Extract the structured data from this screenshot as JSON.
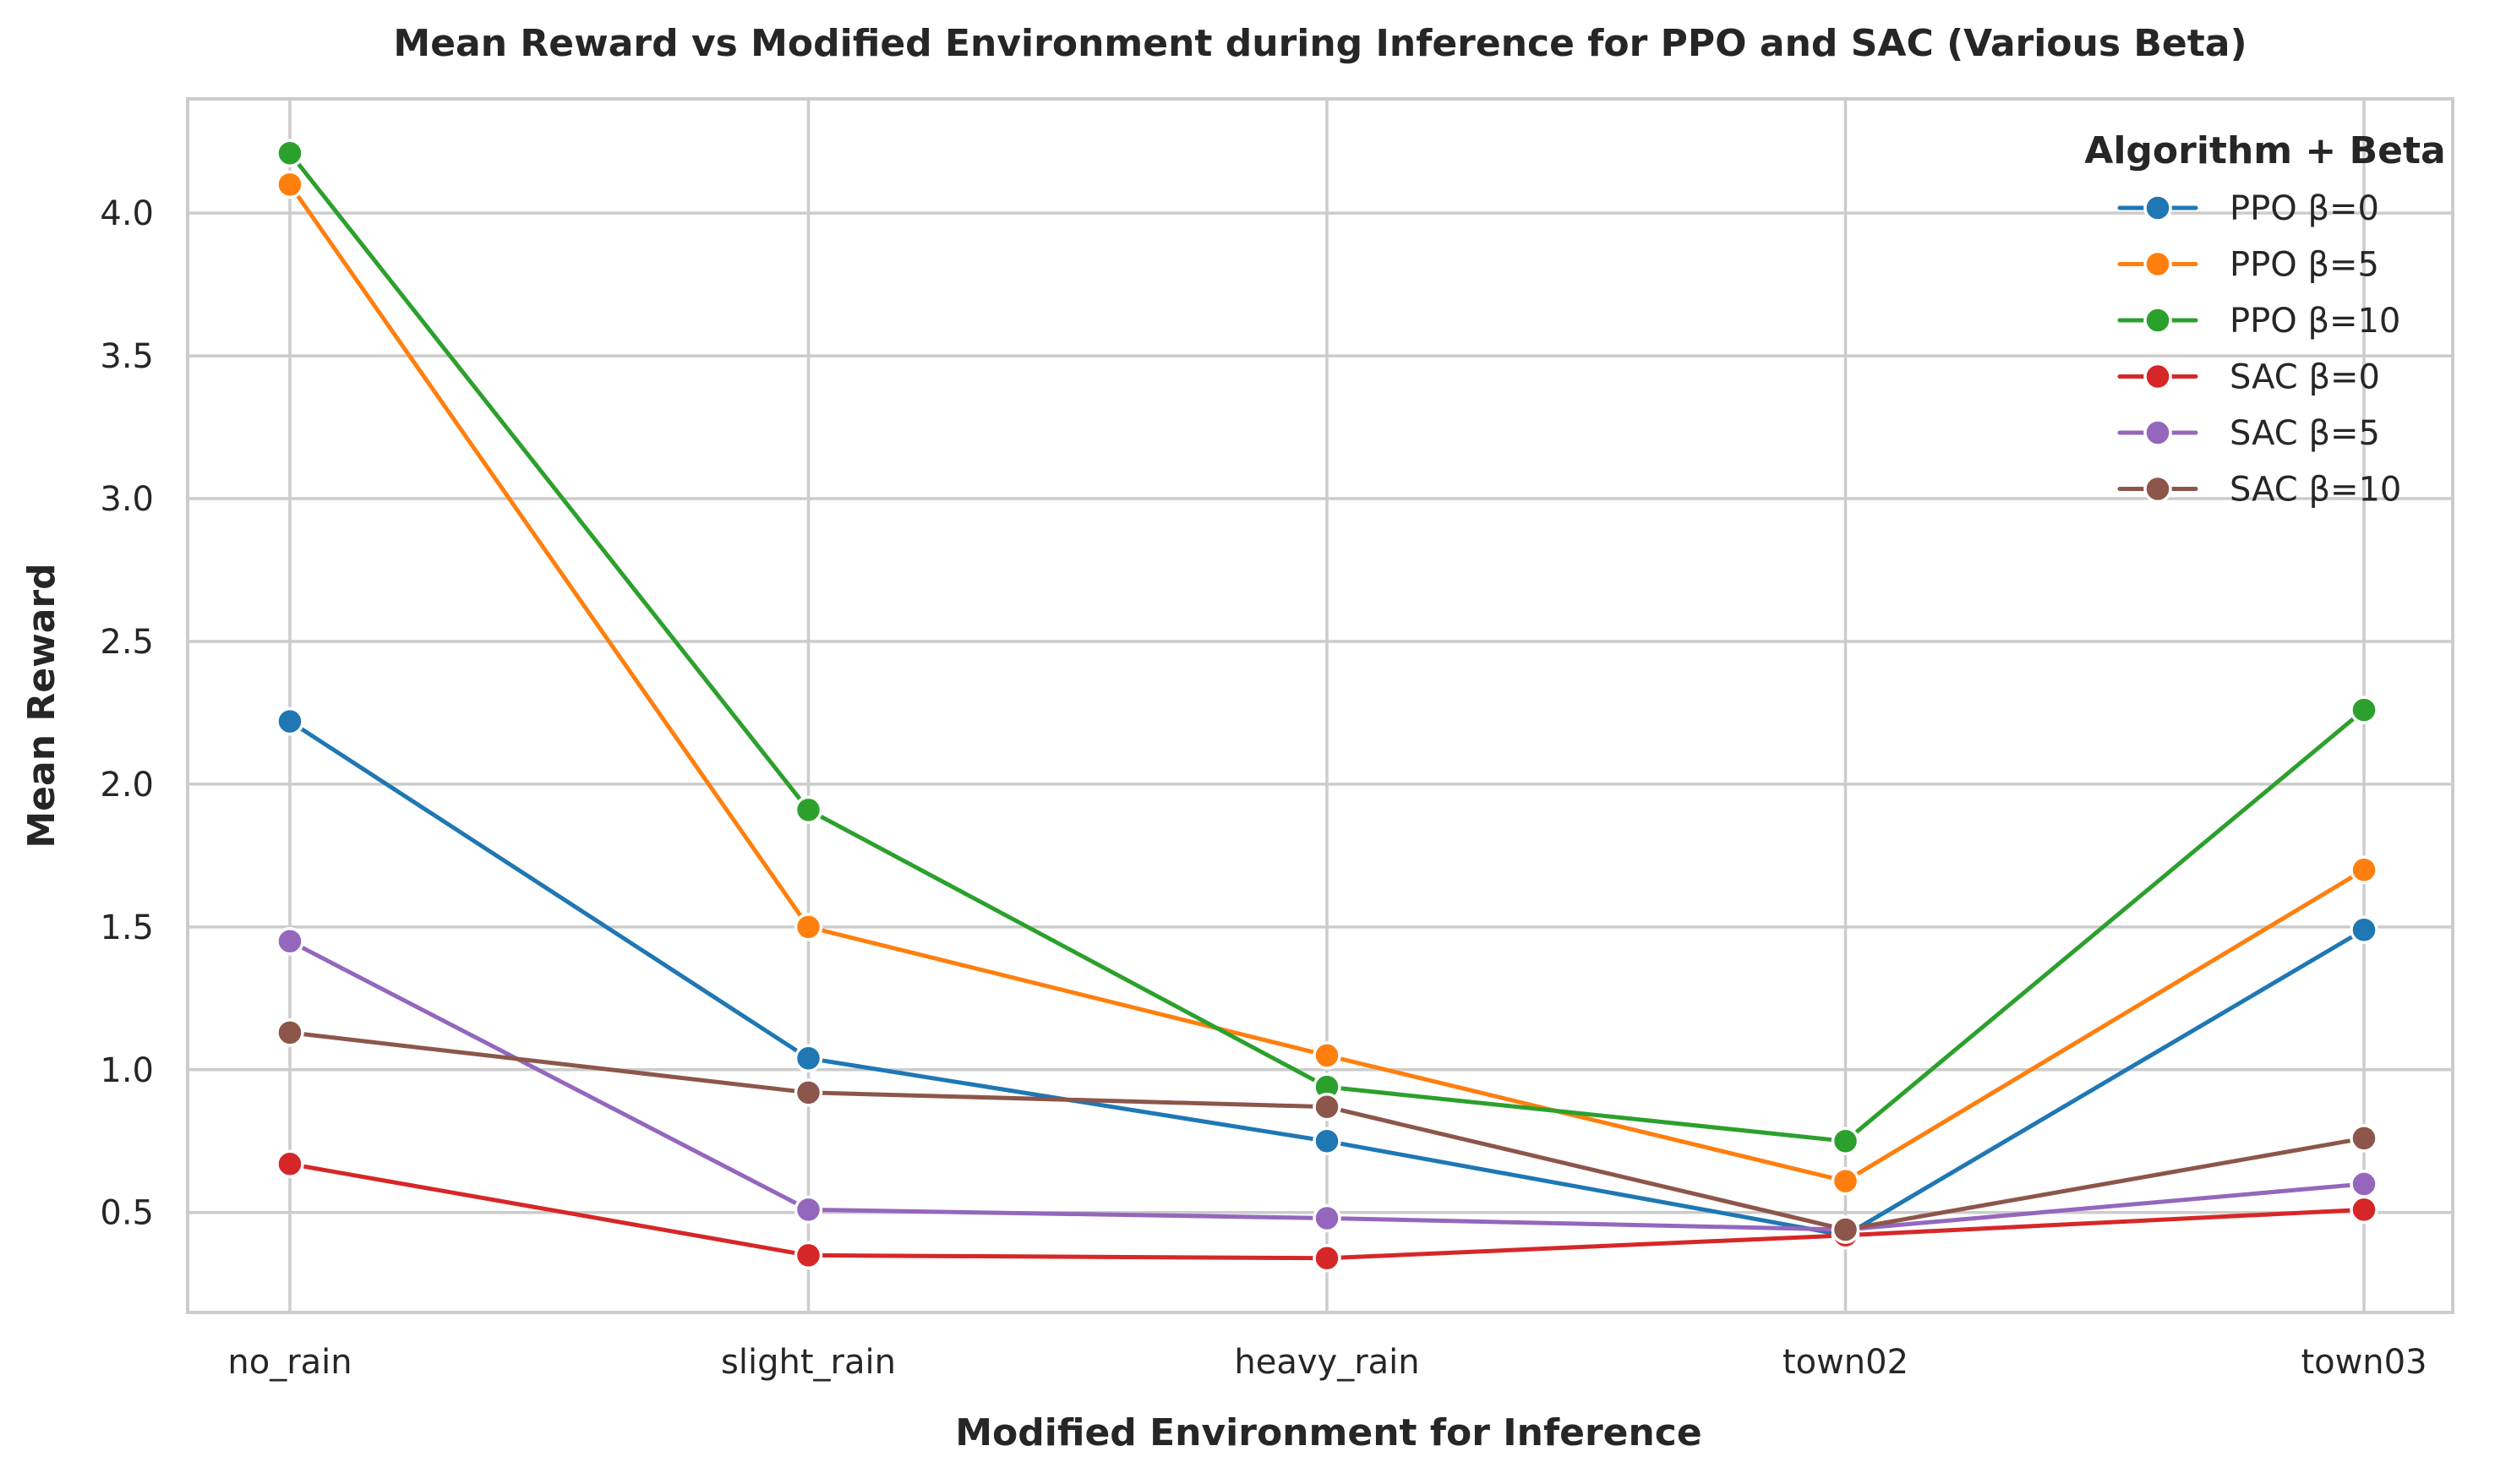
{
  "chart_data": {
    "type": "line",
    "title": "Mean Reward vs Modified Environment during Inference for PPO and SAC (Various Beta)",
    "xlabel": "Modified Environment for Inference",
    "ylabel": "Mean Reward",
    "categories": [
      "no_rain",
      "slight_rain",
      "heavy_rain",
      "town02",
      "town03"
    ],
    "ylim": [
      0.15,
      4.4
    ],
    "yticks": [
      "0.5",
      "1.0",
      "1.5",
      "2.0",
      "2.5",
      "3.0",
      "3.5",
      "4.0"
    ],
    "grid": true,
    "legend": {
      "title": "Algorithm + Beta",
      "placement": "top-right"
    },
    "series": [
      {
        "name": "PPO β=0",
        "color": "#1f77b4",
        "values": [
          2.22,
          1.04,
          0.75,
          0.42,
          1.49
        ]
      },
      {
        "name": "PPO β=5",
        "color": "#ff7f0e",
        "values": [
          4.1,
          1.5,
          1.05,
          0.61,
          1.7
        ]
      },
      {
        "name": "PPO β=10",
        "color": "#2ca02c",
        "values": [
          4.21,
          1.91,
          0.94,
          0.75,
          2.26
        ]
      },
      {
        "name": "SAC β=0",
        "color": "#d62728",
        "values": [
          0.67,
          0.35,
          0.34,
          0.42,
          0.51
        ]
      },
      {
        "name": "SAC β=5",
        "color": "#9467bd",
        "values": [
          1.45,
          0.51,
          0.48,
          0.44,
          0.6
        ]
      },
      {
        "name": "SAC β=10",
        "color": "#8c564b",
        "values": [
          1.13,
          0.92,
          0.87,
          0.44,
          0.76
        ]
      }
    ]
  }
}
